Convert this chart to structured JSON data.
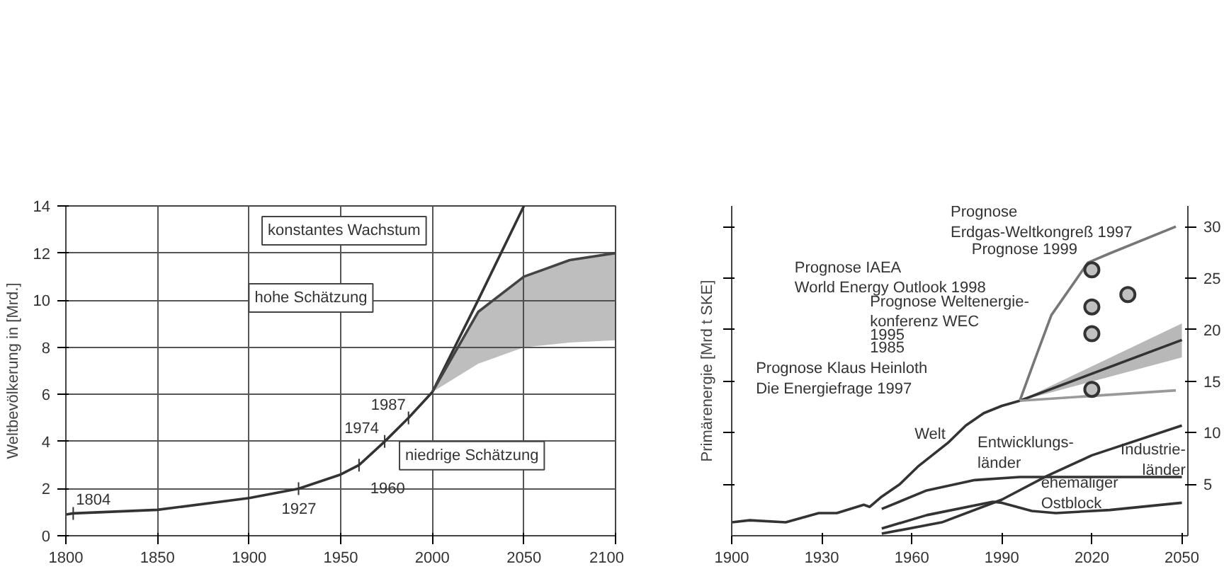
{
  "chart_data": [
    {
      "type": "line",
      "ylabel": "Weltbevölkerung in [Mrd.]",
      "xlim": [
        1800,
        2100
      ],
      "ylim": [
        0,
        14
      ],
      "xticks": [
        1800,
        1850,
        1900,
        1950,
        2000,
        2050,
        2100
      ],
      "yticks": [
        0,
        2,
        4,
        6,
        8,
        10,
        12,
        14
      ],
      "grid": true,
      "series": [
        {
          "x": [
            1800,
            1804,
            1850,
            1900,
            1927,
            1950,
            1960,
            1974,
            1987,
            2000,
            2025,
            2050
          ],
          "values": [
            0.9,
            0.95,
            1.1,
            1.6,
            2.0,
            2.6,
            3.0,
            4.0,
            5.0,
            6.1,
            10.0,
            14.0
          ],
          "color": "#333333"
        },
        {
          "x": [
            2000,
            2025,
            2050,
            2075,
            2100
          ],
          "values": [
            6.1,
            9.5,
            11.0,
            11.7,
            12.0
          ],
          "lower": [
            6.1,
            7.3,
            8.0,
            8.2,
            8.3
          ],
          "upper": [
            6.1,
            9.5,
            11.0,
            11.7,
            12.0
          ],
          "color": "#444444"
        }
      ],
      "annotations": [
        "konstantes Wachstum",
        "hohe Schätzung",
        "niedrige Schätzung",
        {
          "text": "1804",
          "x": 1804,
          "y": 0.95
        },
        {
          "text": "1927",
          "x": 1927,
          "y": 2.0
        },
        {
          "text": "1960",
          "x": 1960,
          "y": 3.0
        },
        {
          "text": "1974",
          "x": 1974,
          "y": 4.0
        },
        {
          "text": "1987",
          "x": 1987,
          "y": 5.0
        }
      ]
    },
    {
      "type": "line",
      "ylabel": "Primärenergie [Mrd t SKE]",
      "xlim": [
        1900,
        2052
      ],
      "ylim": [
        0,
        32
      ],
      "xticks": [
        1900,
        1930,
        1960,
        1990,
        2020,
        2050
      ],
      "yticks": [
        5,
        10,
        15,
        20,
        25,
        30
      ],
      "series": [
        {
          "x": [
            1900,
            1906,
            1918,
            1929,
            1935,
            1944,
            1946,
            1950,
            1956,
            1962,
            1972,
            1978,
            1984,
            1990,
            1996,
            2050
          ],
          "values": [
            1.3,
            1.5,
            1.3,
            2.2,
            2.2,
            3.0,
            2.8,
            3.8,
            5.0,
            6.7,
            9.0,
            10.7,
            11.9,
            12.6,
            13.1,
            19.0
          ],
          "lower": [
            null,
            null,
            null,
            null,
            null,
            null,
            null,
            null,
            null,
            null,
            null,
            null,
            null,
            null,
            13.1,
            17.3
          ],
          "upper": [
            null,
            null,
            null,
            null,
            null,
            null,
            null,
            null,
            null,
            null,
            null,
            null,
            null,
            null,
            13.1,
            20.6
          ],
          "color": "#333333"
        },
        {
          "x": [
            1950,
            1970,
            1990,
            2005,
            2020,
            2050
          ],
          "values": [
            0.2,
            1.3,
            3.5,
            5.8,
            7.8,
            10.7
          ],
          "color": "#333333"
        },
        {
          "x": [
            1950,
            1965,
            1981,
            1996,
            2050
          ],
          "values": [
            2.6,
            4.4,
            5.4,
            5.7,
            5.7
          ],
          "color": "#333333"
        },
        {
          "x": [
            1950,
            1965,
            1987,
            1990,
            2000,
            2008,
            2026,
            2050
          ],
          "values": [
            0.7,
            2.0,
            3.3,
            3.2,
            2.4,
            2.2,
            2.5,
            3.2
          ],
          "color": "#333333"
        },
        {
          "x": [
            1996,
            2000.5,
            2006.5,
            2018.7,
            2026,
            2048
          ],
          "values": [
            13.1,
            16.7,
            21.4,
            26.5,
            27.4,
            30.0
          ],
          "color": "#777777"
        },
        {
          "x": [
            1996,
            2048
          ],
          "values": [
            13.1,
            14.1
          ],
          "color": "#999999"
        },
        {
          "type": "scatter",
          "marker": "circle",
          "x": [
            2020,
            2020,
            2020,
            2020,
            2032
          ],
          "values": [
            25.8,
            22.2,
            19.6,
            14.2,
            23.4
          ],
          "color": "#c0c0c0"
        }
      ],
      "annotations": [
        "Prognose\nErdgas-Weltkongreß 1997",
        "Prognose 1999",
        "Prognose IAEA\nWorld Energy Outlook 1998",
        "Prognose Weltenergie-\nkonferenz  WEC",
        "1995",
        "1985",
        "Prognose Klaus Heinloth\nDie Energiefrage 1997",
        "Welt",
        "Entwicklungs-\nländer",
        "Industrie-\nländer",
        "ehemaliger\nOstblock"
      ]
    }
  ]
}
